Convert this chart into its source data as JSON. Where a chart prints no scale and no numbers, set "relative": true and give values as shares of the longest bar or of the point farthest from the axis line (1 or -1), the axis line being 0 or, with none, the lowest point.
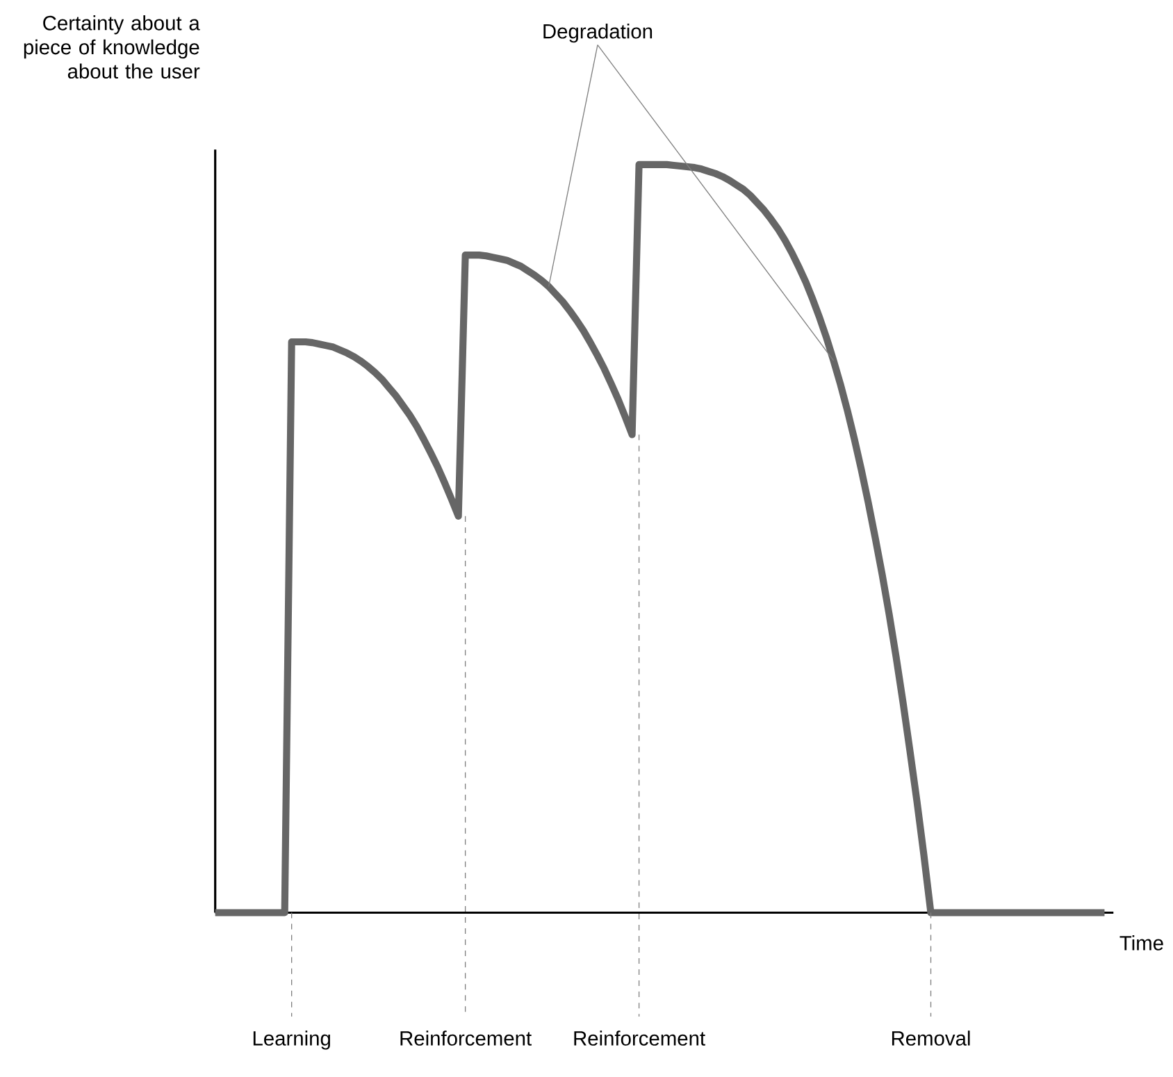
{
  "chart_data": {
    "type": "line",
    "relative": true,
    "xlabel": "Time",
    "ylabel": "Certainty about a piece of knowledge about the user",
    "annotations": [
      "Degradation"
    ],
    "categories": [
      null,
      null,
      null,
      null,
      null,
      null,
      null,
      null,
      null,
      null,
      null,
      "Learning",
      null,
      null,
      null,
      null,
      null,
      null,
      null,
      null,
      null,
      null,
      null,
      null,
      null,
      null,
      null,
      null,
      null,
      null,
      null,
      null,
      null,
      null,
      null,
      null,
      "Reinforcement",
      null,
      null,
      null,
      null,
      null,
      null,
      null,
      null,
      null,
      null,
      null,
      null,
      null,
      null,
      null,
      null,
      null,
      null,
      null,
      null,
      null,
      null,
      null,
      null,
      "Reinforcement",
      null,
      null,
      null,
      null,
      null,
      null,
      null,
      null,
      null,
      null,
      null,
      null,
      null,
      null,
      null,
      null,
      null,
      null,
      null,
      null,
      null,
      null,
      null,
      null,
      null,
      null,
      null,
      null,
      null,
      null,
      null,
      null,
      null,
      null,
      null,
      null,
      null,
      null,
      null,
      null,
      null,
      "Removal",
      null,
      null,
      null,
      null,
      null,
      null,
      null,
      null,
      null,
      null,
      null,
      null,
      null,
      null,
      null,
      null,
      null,
      null,
      null,
      null,
      null,
      null,
      null,
      null,
      null
    ],
    "series": [
      {
        "color": "#666666",
        "values": [
          0,
          0,
          0,
          0,
          0,
          0,
          0,
          0,
          0,
          0,
          0,
          0.763,
          0.763,
          0.763,
          0.762,
          0.76,
          0.758,
          0.756,
          0.752,
          0.748,
          0.743,
          0.737,
          0.73,
          0.722,
          0.713,
          0.702,
          0.691,
          0.678,
          0.665,
          0.65,
          0.633,
          0.615,
          0.596,
          0.575,
          0.553,
          0.53,
          0.879,
          0.879,
          0.879,
          0.878,
          0.876,
          0.874,
          0.872,
          0.868,
          0.864,
          0.858,
          0.852,
          0.845,
          0.837,
          0.827,
          0.817,
          0.805,
          0.792,
          0.778,
          0.762,
          0.745,
          0.727,
          0.707,
          0.686,
          0.663,
          0.639,
          1.0,
          1.0,
          1.0,
          1.0,
          1.0,
          0.999,
          0.998,
          0.997,
          0.996,
          0.994,
          0.991,
          0.988,
          0.984,
          0.979,
          0.973,
          0.967,
          0.959,
          0.949,
          0.939,
          0.927,
          0.914,
          0.899,
          0.882,
          0.863,
          0.843,
          0.82,
          0.795,
          0.768,
          0.738,
          0.706,
          0.671,
          0.633,
          0.592,
          0.548,
          0.501,
          0.452,
          0.399,
          0.342,
          0.281,
          0.216,
          0.149,
          0.077,
          0,
          0,
          0,
          0,
          0,
          0,
          0,
          0,
          0,
          0,
          0,
          0,
          0,
          0,
          0,
          0,
          0,
          0,
          0,
          0,
          0,
          0,
          0,
          0,
          0,
          0
        ]
      }
    ]
  }
}
